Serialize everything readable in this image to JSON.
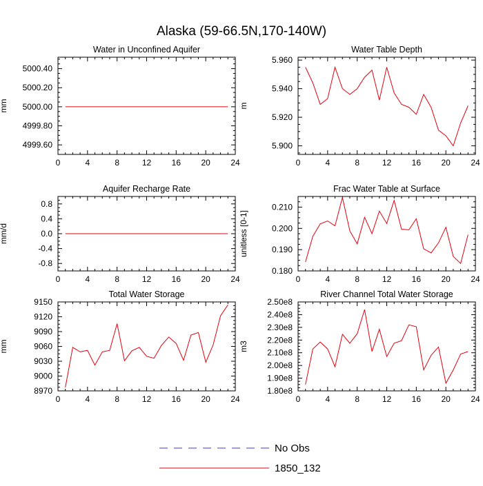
{
  "figure": {
    "title": "Alaska (59-66.5N,170-140W)"
  },
  "legend": {
    "entries": [
      {
        "label": "No Obs",
        "color": "#3b3bd6",
        "dashed": true
      },
      {
        "label": "1850_132",
        "color": "#e3000f",
        "dashed": false
      }
    ]
  },
  "chart_data": [
    {
      "type": "line",
      "title": "Water in Unconfined Aquifer",
      "ylabel": "mm",
      "xlim": [
        0,
        24
      ],
      "ylim": [
        4999.5,
        5000.52
      ],
      "xticks": [
        "0",
        "4",
        "8",
        "12",
        "16",
        "20",
        "24"
      ],
      "yticks": [
        {
          "value": 4999.6,
          "label": "4999.60"
        },
        {
          "value": 4999.8,
          "label": "4999.80"
        },
        {
          "value": 5000.0,
          "label": "5000.00"
        },
        {
          "value": 5000.2,
          "label": "5000.20"
        },
        {
          "value": 5000.4,
          "label": "5000.40"
        }
      ],
      "series": [
        {
          "name": "1850_132",
          "color": "#e3000f",
          "x": [
            1,
            23
          ],
          "y": [
            5000.0,
            5000.0
          ]
        }
      ]
    },
    {
      "type": "line",
      "title": "Water Table Depth",
      "ylabel": "m",
      "xlim": [
        0,
        24
      ],
      "ylim": [
        5.894,
        5.962
      ],
      "xticks": [
        "0",
        "4",
        "8",
        "12",
        "16",
        "20",
        "24"
      ],
      "yticks": [
        {
          "value": 5.9,
          "label": "5.900"
        },
        {
          "value": 5.92,
          "label": "5.920"
        },
        {
          "value": 5.94,
          "label": "5.940"
        },
        {
          "value": 5.96,
          "label": "5.960"
        }
      ],
      "series": [
        {
          "name": "1850_132",
          "color": "#e3000f",
          "x": [
            1,
            2,
            3,
            4,
            5,
            6,
            7,
            8,
            9,
            10,
            11,
            12,
            13,
            14,
            15,
            16,
            17,
            18,
            19,
            20,
            21,
            22,
            23
          ],
          "y": [
            5.955,
            5.944,
            5.929,
            5.933,
            5.955,
            5.94,
            5.936,
            5.94,
            5.948,
            5.953,
            5.932,
            5.955,
            5.937,
            5.929,
            5.927,
            5.922,
            5.936,
            5.927,
            5.911,
            5.907,
            5.9,
            5.916,
            5.928
          ]
        }
      ]
    },
    {
      "type": "line",
      "title": "Aquifer Recharge Rate",
      "ylabel": "mm/d",
      "xlim": [
        0,
        24
      ],
      "ylim": [
        -1.0,
        1.0
      ],
      "xticks": [
        "0",
        "4",
        "8",
        "12",
        "16",
        "20",
        "24"
      ],
      "yticks": [
        {
          "value": -0.8,
          "label": "-0.8"
        },
        {
          "value": -0.4,
          "label": "-0.4"
        },
        {
          "value": 0.0,
          "label": "0.0"
        },
        {
          "value": 0.4,
          "label": "0.4"
        },
        {
          "value": 0.8,
          "label": "0.8"
        }
      ],
      "series": [
        {
          "name": "1850_132",
          "color": "#e3000f",
          "x": [
            1,
            23
          ],
          "y": [
            0.0,
            0.0
          ]
        }
      ]
    },
    {
      "type": "line",
      "title": "Frac Water Table at Surface",
      "ylabel": "unitless [0-1]",
      "xlim": [
        0,
        24
      ],
      "ylim": [
        0.18,
        0.215
      ],
      "xticks": [
        "0",
        "4",
        "8",
        "12",
        "16",
        "20",
        "24"
      ],
      "yticks": [
        {
          "value": 0.18,
          "label": "0.180"
        },
        {
          "value": 0.19,
          "label": "0.190"
        },
        {
          "value": 0.2,
          "label": "0.200"
        },
        {
          "value": 0.21,
          "label": "0.210"
        }
      ],
      "series": [
        {
          "name": "1850_132",
          "color": "#e3000f",
          "x": [
            1,
            2,
            3,
            4,
            5,
            6,
            7,
            8,
            9,
            10,
            11,
            12,
            13,
            14,
            15,
            16,
            17,
            18,
            19,
            20,
            21,
            22,
            23
          ],
          "y": [
            0.1842,
            0.1963,
            0.2021,
            0.2035,
            0.2012,
            0.2145,
            0.1988,
            0.1927,
            0.2052,
            0.1975,
            0.2081,
            0.2023,
            0.2132,
            0.1996,
            0.1993,
            0.2045,
            0.1904,
            0.1885,
            0.1932,
            0.2005,
            0.1868,
            0.1835,
            0.197
          ]
        }
      ]
    },
    {
      "type": "line",
      "title": "Total Water Storage",
      "ylabel": "mm",
      "xlim": [
        0,
        24
      ],
      "ylim": [
        8970,
        9150
      ],
      "xticks": [
        "0",
        "4",
        "8",
        "12",
        "16",
        "20",
        "24"
      ],
      "yticks": [
        {
          "value": 8970,
          "label": "8970"
        },
        {
          "value": 9000,
          "label": "9000"
        },
        {
          "value": 9030,
          "label": "9030"
        },
        {
          "value": 9060,
          "label": "9060"
        },
        {
          "value": 9090,
          "label": "9090"
        },
        {
          "value": 9120,
          "label": "9120"
        },
        {
          "value": 9150,
          "label": "9150"
        }
      ],
      "series": [
        {
          "name": "1850_132",
          "color": "#e3000f",
          "x": [
            1,
            2,
            3,
            4,
            5,
            6,
            7,
            8,
            9,
            10,
            11,
            12,
            13,
            14,
            15,
            16,
            17,
            18,
            19,
            20,
            21,
            22,
            23
          ],
          "y": [
            8977,
            9058,
            9049,
            9052,
            9022,
            9049,
            9052,
            9106,
            9031,
            9051,
            9058,
            9040,
            9036,
            9062,
            9079,
            9066,
            9032,
            9083,
            9088,
            9028,
            9063,
            9122,
            9144
          ]
        }
      ]
    },
    {
      "type": "line",
      "title": "River Channel Total Water Storage",
      "ylabel": "m3",
      "xlim": [
        0,
        24
      ],
      "ylim": [
        180000000,
        250000000
      ],
      "xticks": [
        "0",
        "4",
        "8",
        "12",
        "16",
        "20",
        "24"
      ],
      "yticks": [
        {
          "value": 180000000,
          "label": "1.80e8"
        },
        {
          "value": 190000000,
          "label": "1.90e8"
        },
        {
          "value": 200000000,
          "label": "2.00e8"
        },
        {
          "value": 210000000,
          "label": "2.10e8"
        },
        {
          "value": 220000000,
          "label": "2.20e8"
        },
        {
          "value": 230000000,
          "label": "2.30e8"
        },
        {
          "value": 240000000,
          "label": "2.40e8"
        },
        {
          "value": 250000000,
          "label": "2.50e8"
        }
      ],
      "series": [
        {
          "name": "1850_132",
          "color": "#e3000f",
          "x": [
            1,
            2,
            3,
            4,
            5,
            6,
            7,
            8,
            9,
            10,
            11,
            12,
            13,
            14,
            15,
            16,
            17,
            18,
            19,
            20,
            21,
            22,
            23
          ],
          "y": [
            185000000,
            213000000,
            218500000,
            213000000,
            199000000,
            224500000,
            217500000,
            225000000,
            244000000,
            211000000,
            228500000,
            207000000,
            217500000,
            219500000,
            232000000,
            230500000,
            196500000,
            208000000,
            214500000,
            186000000,
            196500000,
            209000000,
            211000000
          ]
        }
      ]
    }
  ]
}
